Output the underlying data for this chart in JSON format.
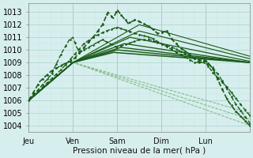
{
  "background_color": "#d7eeee",
  "grid_color_major": "#b0d8cc",
  "grid_color_minor": "#c8e8e0",
  "line_dark": "#1a5c1a",
  "line_mid": "#2e7d2e",
  "line_light": "#7ab87a",
  "ylabel_text": "Pression niveau de la mer( hPa )",
  "ylim": [
    1003.5,
    1013.7
  ],
  "yticks": [
    1004,
    1005,
    1006,
    1007,
    1008,
    1009,
    1010,
    1011,
    1012,
    1013
  ],
  "day_labels": [
    "Jeu",
    "Ven",
    "Sam",
    "Dim",
    "Lun"
  ],
  "day_positions": [
    0,
    24,
    48,
    72,
    96
  ],
  "xlim": [
    0,
    120
  ],
  "figsize": [
    3.2,
    2.0
  ],
  "dpi": 100
}
